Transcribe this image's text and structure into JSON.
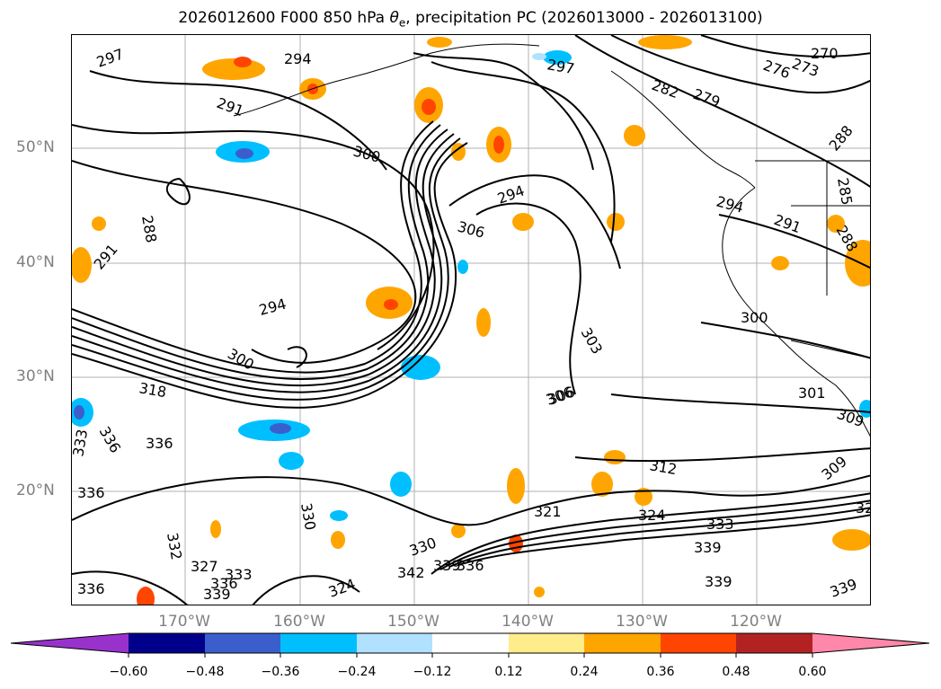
{
  "title": {
    "prefix": "2026012600 F000 850 hPa ",
    "theta_symbol": "θ",
    "theta_sub": "e",
    "suffix": ", precipitation PC (2026013000 - 2026013100)"
  },
  "map": {
    "lat_labels": [
      "50°N",
      "40°N",
      "30°N",
      "20°N"
    ],
    "lon_labels": [
      "170°W",
      "160°W",
      "150°W",
      "140°W",
      "130°W",
      "120°W"
    ],
    "contour_labels": [
      "297",
      "294",
      "291",
      "300",
      "294",
      "306",
      "288",
      "291",
      "294",
      "300",
      "318",
      "336",
      "336",
      "333",
      "336",
      "330",
      "332",
      "327",
      "333",
      "336",
      "339",
      "336",
      "342",
      "330",
      "339",
      "336",
      "324",
      "306",
      "303",
      "306",
      "312",
      "321",
      "324",
      "333",
      "339",
      "339",
      "339",
      "297",
      "282",
      "279",
      "270",
      "276",
      "273",
      "288",
      "285",
      "294",
      "291",
      "288",
      "300",
      "301",
      "309",
      "309",
      "32"
    ],
    "contour_color": "#000000",
    "grid_color": "#b0b0b0",
    "coast_color": "#000000"
  },
  "colorbar": {
    "tick_labels": [
      "−0.60",
      "−0.48",
      "−0.36",
      "−0.24",
      "−0.12",
      "0.12",
      "0.24",
      "0.36",
      "0.48",
      "0.60"
    ],
    "colors": [
      "#9932cc",
      "#00008b",
      "#3a5fcd",
      "#00bfff",
      "#b0e2ff",
      "#ffffff",
      "#ffec8b",
      "#ffa500",
      "#ff4500",
      "#b22222",
      "#ff88aa"
    ]
  }
}
